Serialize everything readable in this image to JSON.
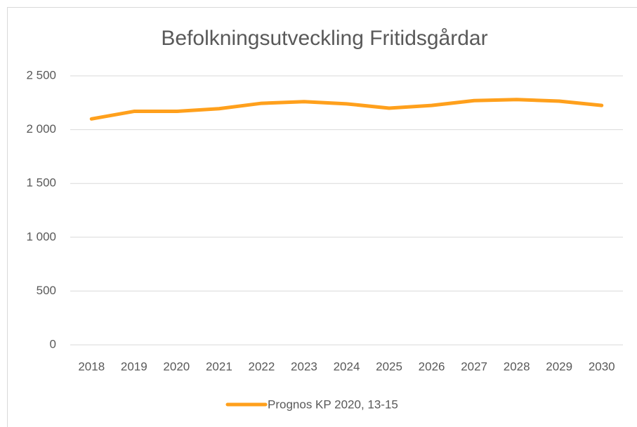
{
  "chart_data": {
    "type": "line",
    "title": "Befolkningsutveckling Fritidsgårdar",
    "categories": [
      "2018",
      "2019",
      "2020",
      "2021",
      "2022",
      "2023",
      "2024",
      "2025",
      "2026",
      "2027",
      "2028",
      "2029",
      "2030"
    ],
    "series": [
      {
        "name": "Prognos KP 2020, 13-15",
        "color": "#ffa01c",
        "values": [
          2100,
          2170,
          2170,
          2195,
          2245,
          2260,
          2240,
          2200,
          2225,
          2270,
          2280,
          2265,
          2225
        ]
      }
    ],
    "ylim": [
      0,
      2500
    ],
    "yticks": [
      0,
      500,
      {
        "value": 1000,
        "label": "1 000"
      },
      {
        "value": 1500,
        "label": "1 500"
      },
      {
        "value": 2000,
        "label": "2 000"
      },
      {
        "value": 2500,
        "label": "2 500"
      }
    ],
    "grid": true,
    "legend": "bottom"
  }
}
